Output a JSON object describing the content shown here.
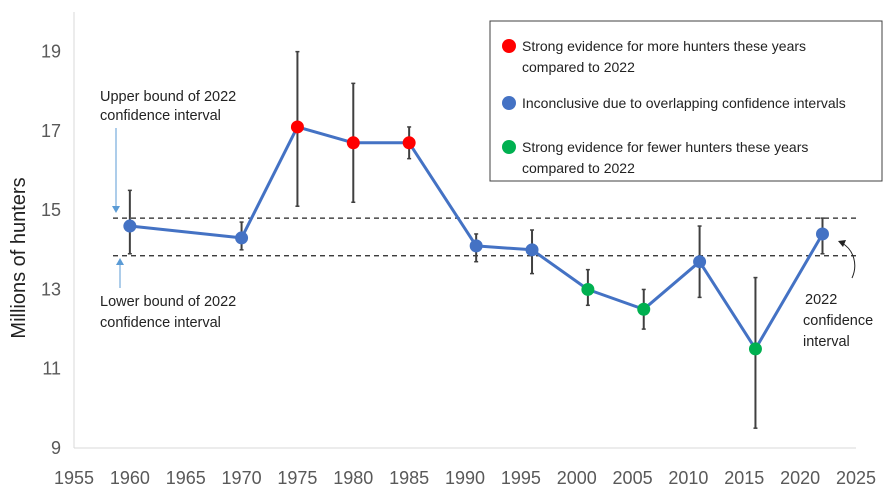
{
  "chart_data": {
    "type": "line",
    "ylabel": "Millions of hunters",
    "xlabel": "",
    "xlim": [
      1955,
      2025
    ],
    "ylim": [
      9,
      20
    ],
    "x_ticks": [
      "1955",
      "1960",
      "1965",
      "1970",
      "1975",
      "1980",
      "1985",
      "1990",
      "1995",
      "2000",
      "2005",
      "2010",
      "2015",
      "2020",
      "2025"
    ],
    "y_ticks": [
      "9",
      "11",
      "13",
      "15",
      "17",
      "19"
    ],
    "series": [
      {
        "name": "Millions of hunters",
        "color": "#4472C4",
        "points": [
          {
            "x": 1960,
            "y": 14.6,
            "err_low": 13.9,
            "err_high": 15.5,
            "category": "inconclusive"
          },
          {
            "x": 1970,
            "y": 14.3,
            "err_low": 14.0,
            "err_high": 14.7,
            "category": "inconclusive"
          },
          {
            "x": 1975,
            "y": 17.1,
            "err_low": 15.1,
            "err_high": 19.0,
            "category": "more"
          },
          {
            "x": 1980,
            "y": 16.7,
            "err_low": 15.2,
            "err_high": 18.2,
            "category": "more"
          },
          {
            "x": 1985,
            "y": 16.7,
            "err_low": 16.3,
            "err_high": 17.1,
            "category": "more"
          },
          {
            "x": 1991,
            "y": 14.1,
            "err_low": 13.7,
            "err_high": 14.4,
            "category": "inconclusive"
          },
          {
            "x": 1996,
            "y": 14.0,
            "err_low": 13.4,
            "err_high": 14.5,
            "category": "inconclusive"
          },
          {
            "x": 2001,
            "y": 13.0,
            "err_low": 12.6,
            "err_high": 13.5,
            "category": "fewer"
          },
          {
            "x": 2006,
            "y": 12.5,
            "err_low": 12.0,
            "err_high": 13.0,
            "category": "fewer"
          },
          {
            "x": 2011,
            "y": 13.7,
            "err_low": 12.8,
            "err_high": 14.6,
            "category": "inconclusive"
          },
          {
            "x": 2016,
            "y": 11.5,
            "err_low": 9.5,
            "err_high": 13.3,
            "category": "fewer"
          },
          {
            "x": 2022,
            "y": 14.4,
            "err_low": 13.9,
            "err_high": 14.8,
            "category": "inconclusive"
          }
        ]
      }
    ],
    "reference_lines": [
      {
        "name": "Upper bound of 2022 confidence interval",
        "y": 14.8
      },
      {
        "name": "Lower bound of 2022 confidence interval",
        "y": 13.85
      }
    ],
    "annotations": {
      "upper": [
        "Upper bound of 2022",
        "confidence interval"
      ],
      "lower": [
        "Lower bound of 2022",
        "confidence interval"
      ],
      "ci2022": [
        "2022",
        "confidence",
        "interval"
      ]
    },
    "legend": {
      "position": "top-right",
      "items": [
        {
          "key": "more",
          "color": "#FF0000",
          "lines": [
            "Strong evidence for more hunters these years",
            "compared to 2022"
          ]
        },
        {
          "key": "inconclusive",
          "color": "#4472C4",
          "lines": [
            "Inconclusive due to overlapping confidence intervals"
          ]
        },
        {
          "key": "fewer",
          "color": "#00B050",
          "lines": [
            "Strong evidence for fewer hunters these years",
            "compared to 2022"
          ]
        }
      ]
    }
  }
}
